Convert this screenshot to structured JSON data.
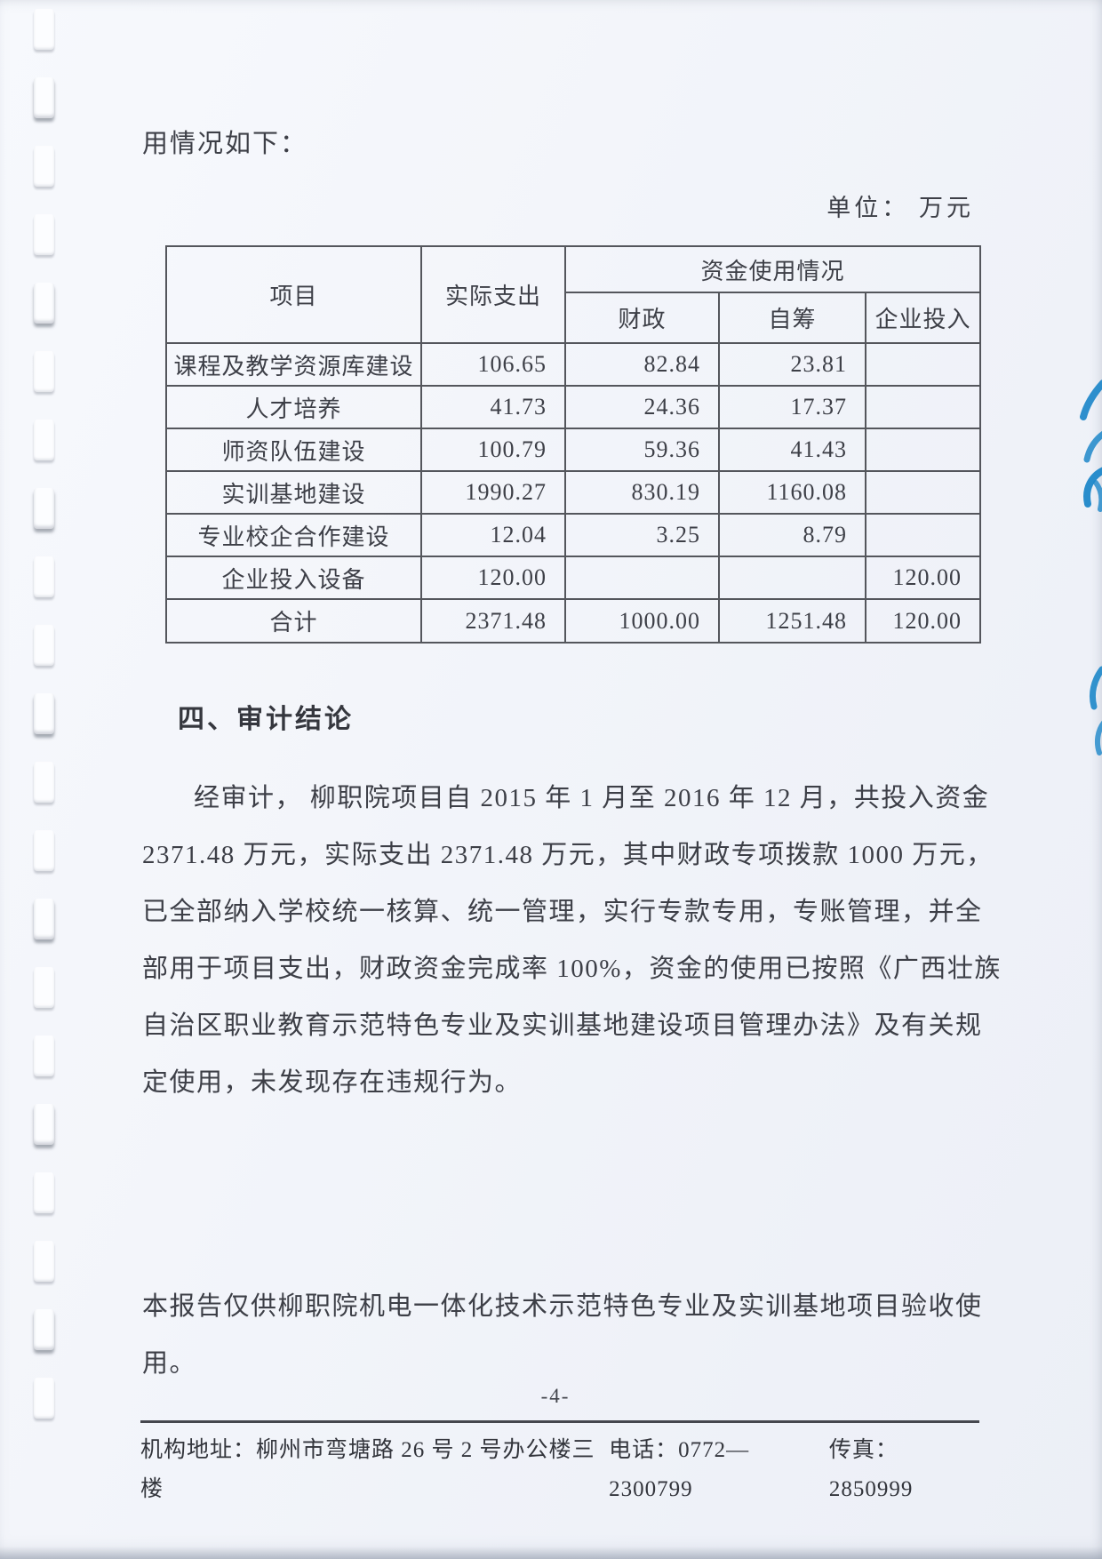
{
  "page": {
    "intro_line": "用情况如下：",
    "unit_label": "单位： 万元",
    "page_number": "-4-"
  },
  "table": {
    "header": {
      "col_item": "项目",
      "col_actual": "实际支出",
      "col_usage_group": "资金使用情况",
      "col_fiscal": "财政",
      "col_self": "自筹",
      "col_enterprise": "企业投入"
    },
    "rows": [
      {
        "item": "课程及教学资源库建设",
        "actual": "106.65",
        "fiscal": "82.84",
        "self": "23.81",
        "enterprise": ""
      },
      {
        "item": "人才培养",
        "actual": "41.73",
        "fiscal": "24.36",
        "self": "17.37",
        "enterprise": ""
      },
      {
        "item": "师资队伍建设",
        "actual": "100.79",
        "fiscal": "59.36",
        "self": "41.43",
        "enterprise": ""
      },
      {
        "item": "实训基地建设",
        "actual": "1990.27",
        "fiscal": "830.19",
        "self": "1160.08",
        "enterprise": ""
      },
      {
        "item": "专业校企合作建设",
        "actual": "12.04",
        "fiscal": "3.25",
        "self": "8.79",
        "enterprise": ""
      },
      {
        "item": "企业投入设备",
        "actual": "120.00",
        "fiscal": "",
        "self": "",
        "enterprise": "120.00"
      }
    ],
    "total_row": {
      "item": "合计",
      "actual": "2371.48",
      "fiscal": "1000.00",
      "self": "1251.48",
      "enterprise": "120.00"
    },
    "unit": "万元"
  },
  "conclusion": {
    "heading": "四、审计结论",
    "lines": [
      "经审计， 柳职院项目自 2015 年 1 月至 2016 年 12 月，共投入资金",
      "2371.48 万元，实际支出 2371.48 万元，其中财政专项拨款 1000 万元，",
      "已全部纳入学校统一核算、统一管理，实行专款专用，专账管理，并全",
      "部用于项目支出，财政资金完成率 100%，资金的使用已按照《广西壮族",
      "自治区职业教育示范特色专业及实训基地建设项目管理办法》及有关规",
      "定使用，未发现存在违规行为。"
    ]
  },
  "note": {
    "lines": [
      "本报告仅供柳职院机电一体化技术示范特色专业及实训基地项目验收使",
      "用。"
    ]
  },
  "footer": {
    "address": "机构地址：柳州市弯塘路 26 号 2 号办公楼三楼",
    "phone": "电话：0772—2300799",
    "fax": "传真：2850999"
  },
  "colors": {
    "ink": "#3d3f47",
    "table_border": "#54565c",
    "stamp_blue": "#1d87c9",
    "paper": "#f2f4f9"
  }
}
